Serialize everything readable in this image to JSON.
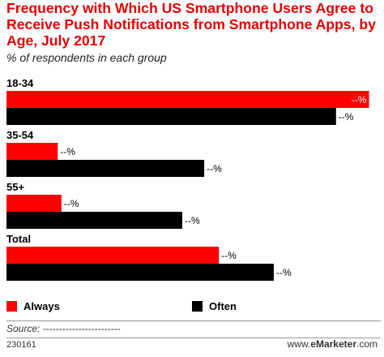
{
  "title": "Frequency with Which US Smartphone Users Agree to Receive Push Notifications from Smartphone Apps, by Age, July 2017",
  "subtitle": "% of respondents in each group",
  "colors": {
    "always": "#ff0000",
    "often": "#000000",
    "title": "#e30000"
  },
  "chart_data": {
    "type": "bar",
    "orientation": "horizontal",
    "categories": [
      "18-34",
      "35-54",
      "55+",
      "Total"
    ],
    "series": [
      {
        "name": "Always",
        "values": [
          99,
          14,
          15,
          58
        ],
        "labels": [
          "--%",
          "--%",
          "--%",
          "--%"
        ]
      },
      {
        "name": "Often",
        "values": [
          90,
          54,
          48,
          73
        ],
        "labels": [
          "--%",
          "--%",
          "--%",
          "--%"
        ]
      }
    ],
    "title": "Frequency with Which US Smartphone Users Agree to Receive Push Notifications from Smartphone Apps, by Age, July 2017",
    "xlabel": "",
    "ylabel": "",
    "xlim": [
      0,
      100
    ],
    "grid": false,
    "legend": "bottom"
  },
  "legend": {
    "always": "Always",
    "often": "Often"
  },
  "footer": {
    "source": "Source: ------------------------",
    "id": "230161",
    "brand_prefix": "www.",
    "brand_name": "eMarketer",
    "brand_suffix": ".com"
  }
}
